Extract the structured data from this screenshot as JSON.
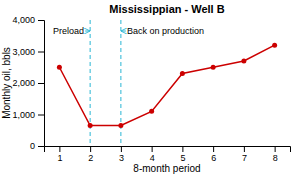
{
  "chart_data": {
    "type": "line",
    "title": "Mississippian - Well B",
    "xlabel": "8-month period",
    "ylabel": "Monthly oil, bbls",
    "x": [
      1,
      2,
      3,
      4,
      5,
      6,
      7,
      8
    ],
    "series": [
      {
        "color": "#cc0000",
        "marker": "circle",
        "values": [
          2500,
          650,
          650,
          1100,
          2300,
          2500,
          2700,
          3200
        ]
      }
    ],
    "xlim": [
      0.5,
      8.5
    ],
    "xticks": [
      1,
      2,
      3,
      4,
      5,
      6,
      7,
      8
    ],
    "ylim": [
      0,
      4000
    ],
    "yticks": [
      0,
      {
        "value": 1000,
        "label": "1,000"
      },
      {
        "value": 2000,
        "label": "2,000"
      },
      {
        "value": 3000,
        "label": "3,000"
      },
      {
        "value": 4000,
        "label": "4,000"
      }
    ],
    "grid": false,
    "annotations": [
      {
        "text": "Preload",
        "x": 2,
        "y": 3650,
        "color": "#29b6d4",
        "line_style": "dashed"
      },
      {
        "text": "Back on production",
        "x": 3,
        "y": 3650,
        "color": "#29b6d4",
        "line_style": "dashed"
      }
    ]
  }
}
